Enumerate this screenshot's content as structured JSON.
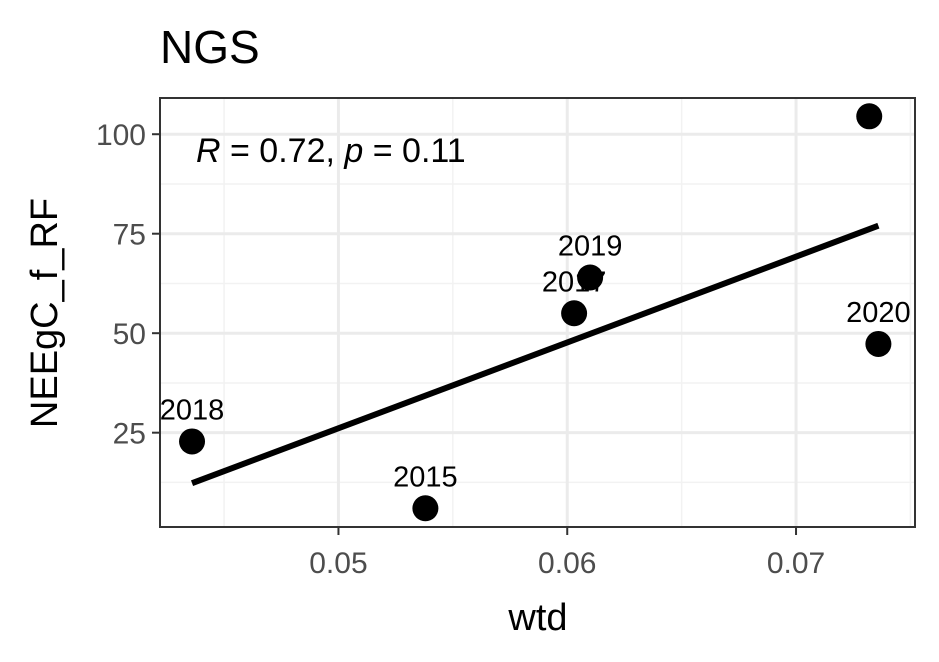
{
  "chart_data": {
    "type": "scatter",
    "title": "NGS",
    "xlabel": "wtd",
    "ylabel": "NEEgC_f_RF",
    "xlim": [
      0.0422,
      0.0752
    ],
    "ylim": [
      1.3,
      109.1
    ],
    "x_ticks": [
      {
        "value": 0.05,
        "label": "0.05"
      },
      {
        "value": 0.06,
        "label": "0.06"
      },
      {
        "value": 0.07,
        "label": "0.07"
      }
    ],
    "y_ticks": [
      {
        "value": 25,
        "label": "25"
      },
      {
        "value": 50,
        "label": "50"
      },
      {
        "value": 75,
        "label": "75"
      },
      {
        "value": 100,
        "label": "100"
      }
    ],
    "x_minor": [
      0.045,
      0.055,
      0.065,
      0.075
    ],
    "y_minor": [
      12.5,
      37.5,
      62.5,
      87.5
    ],
    "grid": true,
    "points": [
      {
        "x": 0.0436,
        "y": 22.8,
        "label": "2018"
      },
      {
        "x": 0.0538,
        "y": 6.0,
        "label": "2015"
      },
      {
        "x": 0.0603,
        "y": 55.0,
        "label": "2017"
      },
      {
        "x": 0.061,
        "y": 64.0,
        "label": "2019"
      },
      {
        "x": 0.0732,
        "y": 104.5,
        "label": ""
      },
      {
        "x": 0.0736,
        "y": 47.3,
        "label": "2020"
      }
    ],
    "fit_line": {
      "x": [
        0.0436,
        0.0736
      ],
      "y": [
        12.3,
        77.0
      ]
    },
    "stat": {
      "r_symbol": "R",
      "r_text": " = 0.72, ",
      "p_symbol": "p",
      "p_text": " = 0.11"
    }
  }
}
